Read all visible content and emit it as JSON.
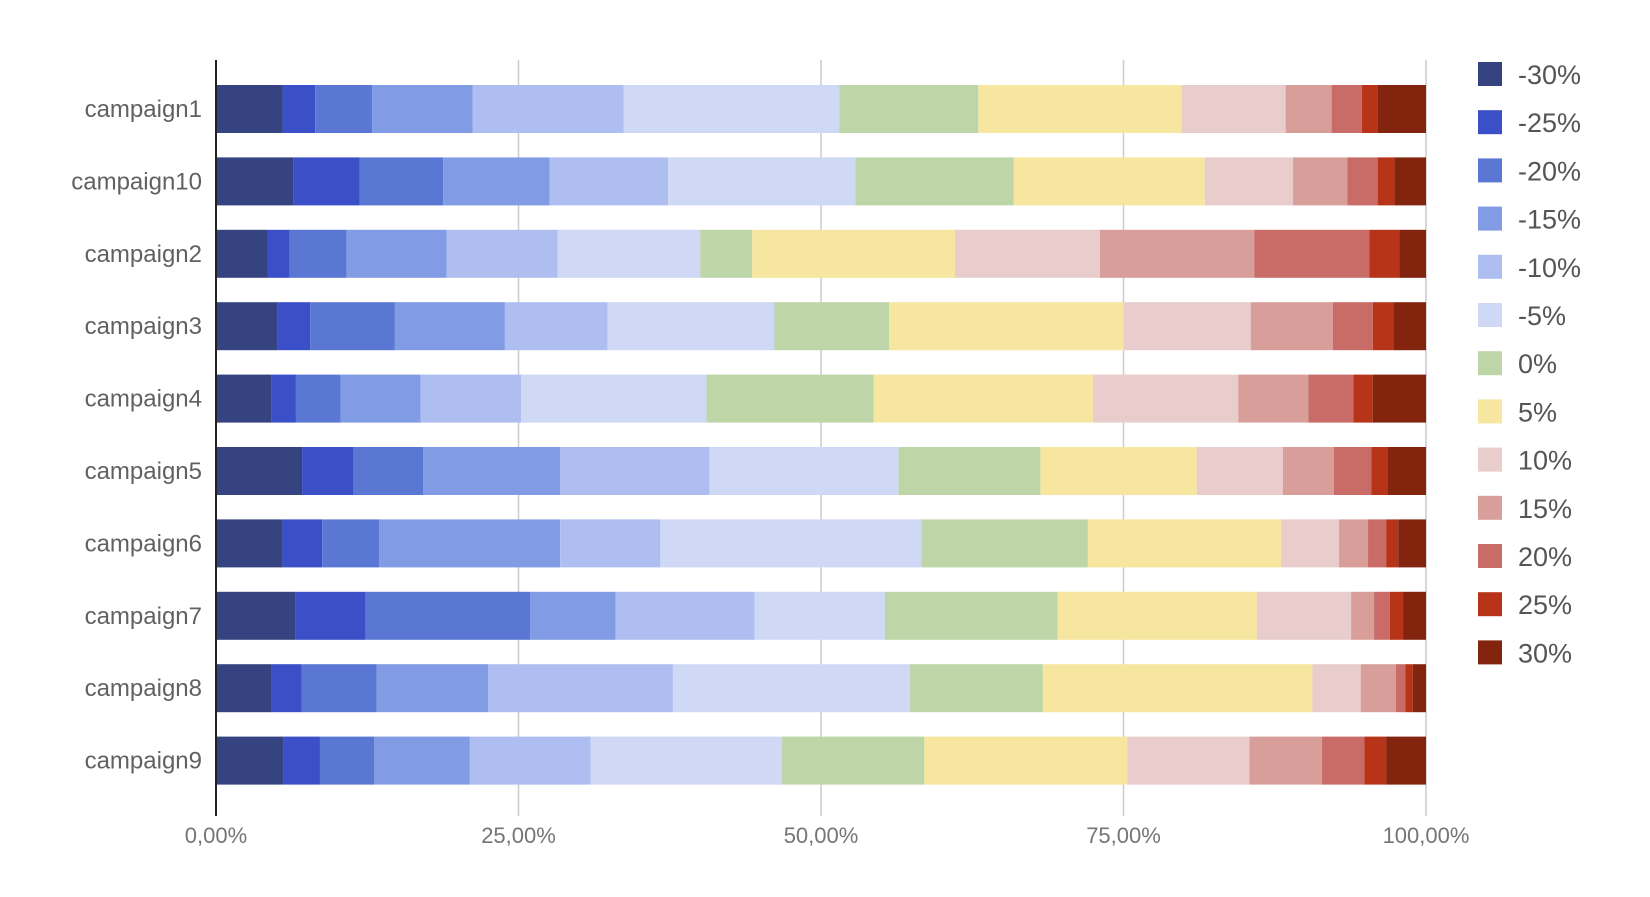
{
  "chart_data": {
    "type": "bar",
    "orientation": "horizontal",
    "stacked": "percent",
    "title": "",
    "xlabel": "",
    "ylabel": "",
    "xlim": [
      0,
      100
    ],
    "x_ticks": [
      0,
      25,
      50,
      75,
      100
    ],
    "x_tick_labels": [
      "0,00%",
      "25,00%",
      "50,00%",
      "75,00%",
      "100,00%"
    ],
    "grid": true,
    "legend_position": "right",
    "categories": [
      "campaign1",
      "campaign10",
      "campaign2",
      "campaign3",
      "campaign4",
      "campaign5",
      "campaign6",
      "campaign7",
      "campaign8",
      "campaign9"
    ],
    "series": [
      {
        "name": "-30%",
        "color": "#354380",
        "values": [
          5.5,
          6.4,
          4.3,
          5.1,
          4.6,
          7.1,
          5.5,
          6.6,
          4.6,
          5.6
        ]
      },
      {
        "name": "-25%",
        "color": "#3b4fc9",
        "values": [
          2.7,
          5.5,
          1.8,
          2.7,
          2.0,
          4.2,
          3.3,
          5.8,
          2.5,
          3.0
        ]
      },
      {
        "name": "-20%",
        "color": "#5a77d3",
        "values": [
          4.7,
          6.9,
          4.7,
          7.0,
          3.7,
          5.8,
          4.7,
          13.6,
          6.2,
          4.5
        ]
      },
      {
        "name": "-15%",
        "color": "#819be4",
        "values": [
          8.3,
          8.8,
          8.3,
          9.1,
          6.6,
          11.3,
          15.0,
          7.1,
          9.2,
          7.9
        ]
      },
      {
        "name": "-10%",
        "color": "#afbef0",
        "values": [
          12.5,
          9.8,
          9.2,
          8.5,
          8.3,
          12.3,
          8.3,
          11.5,
          15.3,
          10.0
        ]
      },
      {
        "name": "-5%",
        "color": "#cfd8f5",
        "values": [
          17.8,
          15.5,
          11.8,
          13.8,
          15.3,
          15.6,
          21.6,
          10.8,
          19.6,
          15.8
        ]
      },
      {
        "name": "0%",
        "color": "#bed5a8",
        "values": [
          11.5,
          13.1,
          4.3,
          9.5,
          13.8,
          11.7,
          13.8,
          14.3,
          11.0,
          11.8
        ]
      },
      {
        "name": "5%",
        "color": "#f6e6a0",
        "values": [
          16.8,
          15.8,
          16.8,
          19.4,
          18.1,
          12.9,
          16.0,
          16.5,
          22.3,
          16.8
        ]
      },
      {
        "name": "10%",
        "color": "#e9cccc",
        "values": [
          8.6,
          7.3,
          12.0,
          10.5,
          12.0,
          7.1,
          4.8,
          7.8,
          4.0,
          10.1
        ]
      },
      {
        "name": "15%",
        "color": "#d79e9a",
        "values": [
          3.8,
          4.5,
          12.8,
          6.8,
          5.8,
          4.2,
          2.4,
          1.9,
          2.9,
          6.0
        ]
      },
      {
        "name": "20%",
        "color": "#c96b66",
        "values": [
          2.5,
          2.5,
          9.5,
          3.3,
          3.7,
          3.1,
          1.5,
          1.3,
          0.8,
          3.5
        ]
      },
      {
        "name": "25%",
        "color": "#b73419",
        "values": [
          1.3,
          1.4,
          2.5,
          1.7,
          1.6,
          1.3,
          1.0,
          1.1,
          0.6,
          1.8
        ]
      },
      {
        "name": "30%",
        "color": "#83240f",
        "values": [
          4.0,
          2.6,
          2.2,
          2.7,
          4.4,
          3.2,
          2.3,
          1.9,
          1.1,
          3.3
        ]
      }
    ]
  }
}
